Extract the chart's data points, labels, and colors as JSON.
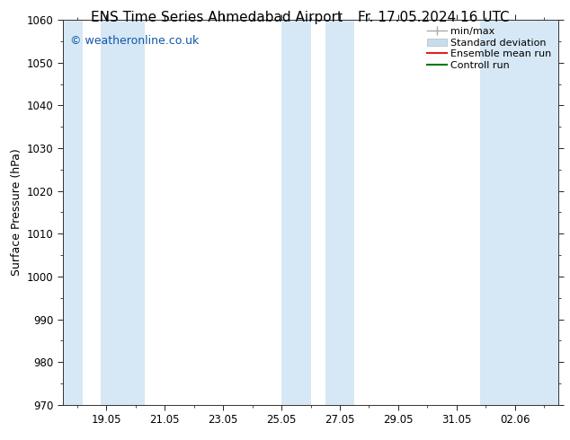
{
  "title_left": "ENS Time Series Ahmedabad Airport",
  "title_right": "Fr. 17.05.2024 16 UTC",
  "ylabel": "Surface Pressure (hPa)",
  "ylim": [
    970,
    1060
  ],
  "yticks": [
    970,
    980,
    990,
    1000,
    1010,
    1020,
    1030,
    1040,
    1050,
    1060
  ],
  "xtick_positions": [
    19,
    21,
    23,
    25,
    27,
    29,
    31,
    33
  ],
  "xtick_labels": [
    "19.05",
    "21.05",
    "23.05",
    "25.05",
    "27.05",
    "29.05",
    "31.05",
    "02.06"
  ],
  "x_min": 17.5,
  "x_max": 34.5,
  "shaded_bands": [
    {
      "x_start": 17.5,
      "x_end": 18.2
    },
    {
      "x_start": 18.8,
      "x_end": 20.3
    },
    {
      "x_start": 25.0,
      "x_end": 26.0
    },
    {
      "x_start": 26.5,
      "x_end": 27.5
    },
    {
      "x_start": 31.8,
      "x_end": 34.5
    }
  ],
  "shade_color": "#d6e8f5",
  "background_color": "#ffffff",
  "watermark_text": "© weatheronline.co.uk",
  "watermark_color": "#1155aa",
  "title_fontsize": 11,
  "axis_label_fontsize": 9,
  "tick_fontsize": 8.5,
  "legend_fontsize": 8,
  "fig_width": 6.34,
  "fig_height": 4.9,
  "dpi": 100
}
